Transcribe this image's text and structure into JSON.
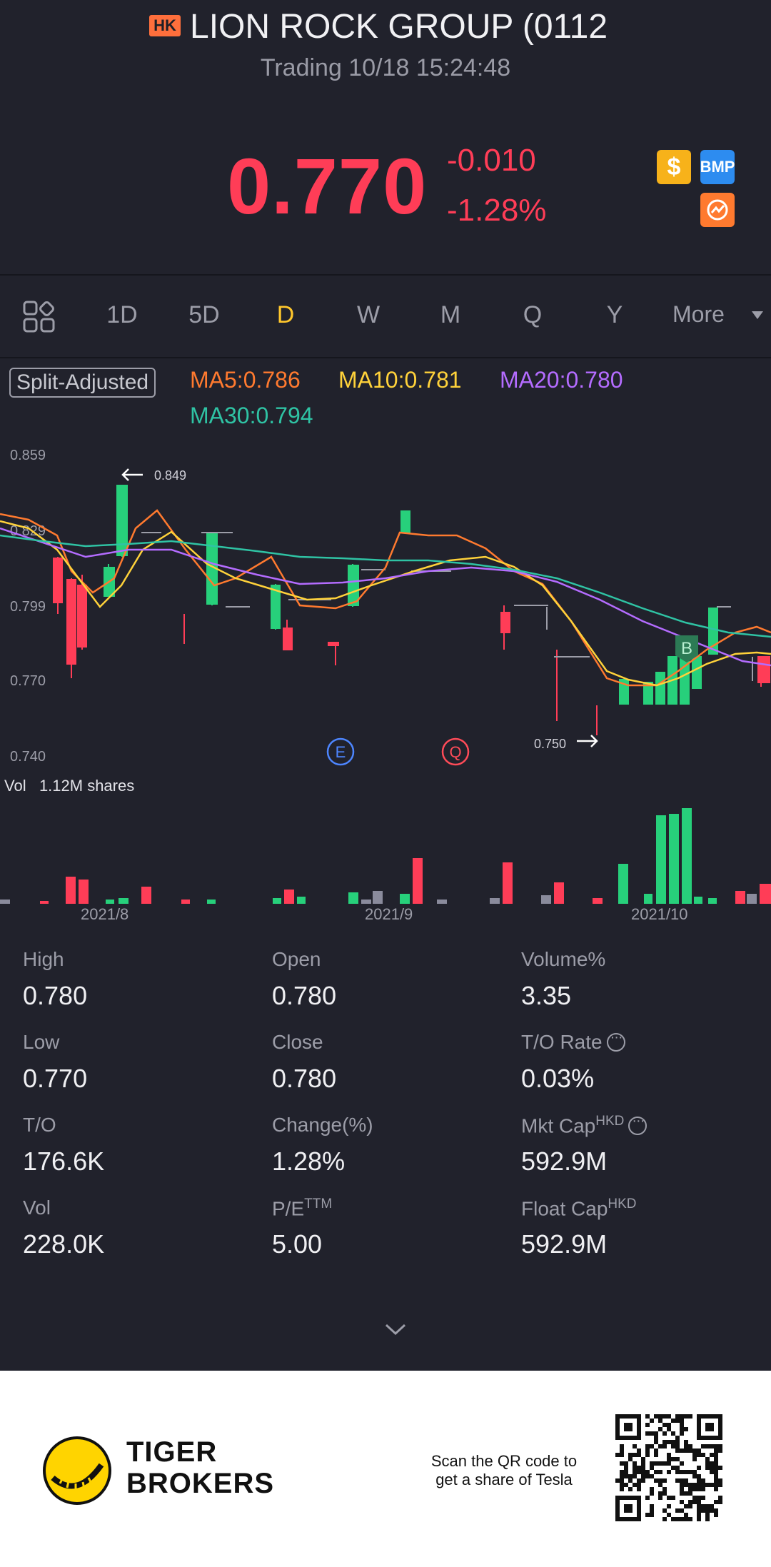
{
  "header": {
    "market_badge": "HK",
    "title": "LION ROCK GROUP (0112",
    "status": "Trading 10/18 15:24:48"
  },
  "quote": {
    "price": "0.770",
    "change": "-0.010",
    "change_pct": "-1.28%",
    "badges": {
      "dollar": "$",
      "bmp": "BMP"
    }
  },
  "tabs": {
    "items": [
      "1D",
      "5D",
      "D",
      "W",
      "M",
      "Q",
      "Y"
    ],
    "active": "D",
    "more": "More"
  },
  "chart_toolbar": {
    "adjust_label": "Split-Adjusted",
    "ma5": "MA5:0.786",
    "ma10": "MA10:0.781",
    "ma20": "MA20:0.780",
    "ma30": "MA30:0.794"
  },
  "colors": {
    "up": "#27d07b",
    "down": "#ff3d57",
    "ma5": "#ff7a2f",
    "ma10": "#ffd23a",
    "ma20": "#b46cff",
    "ma30": "#2fc3a4",
    "accent": "#ffc72c"
  },
  "chart_data": {
    "type": "candlestick",
    "y_ticks": [
      "0.859",
      "0.829",
      "0.799",
      "0.770",
      "0.740"
    ],
    "ylim": [
      0.74,
      0.859
    ],
    "annotations": {
      "high": "0.849",
      "low": "0.750"
    },
    "event_markers": [
      "E",
      "Q",
      "B"
    ],
    "x_labels": [
      "2021/8",
      "2021/9",
      "2021/10"
    ],
    "volume_label": "Vol",
    "volume_value": "1.12M shares"
  },
  "stats": [
    {
      "label": "High",
      "value": "0.780"
    },
    {
      "label": "Open",
      "value": "0.780"
    },
    {
      "label": "Volume%",
      "value": "3.35"
    },
    {
      "label": "Low",
      "value": "0.770"
    },
    {
      "label": "Close",
      "value": "0.780"
    },
    {
      "label": "T/O Rate",
      "value": "0.03%"
    },
    {
      "label": "T/O",
      "value": "176.6K"
    },
    {
      "label": "Change(%)",
      "value": "1.28%"
    },
    {
      "label": "Mkt Cap",
      "sup": "HKD",
      "value": "592.9M"
    },
    {
      "label": "Vol",
      "value": "228.0K"
    },
    {
      "label": "P/E",
      "sup": "TTM",
      "value": "5.00"
    },
    {
      "label": "Float Cap",
      "sup": "HKD",
      "value": "592.9M"
    }
  ],
  "footer": {
    "brand_line1": "TIGER",
    "brand_line2": "BROKERS",
    "scan_text": "Scan the QR code to get a share of Tesla"
  }
}
